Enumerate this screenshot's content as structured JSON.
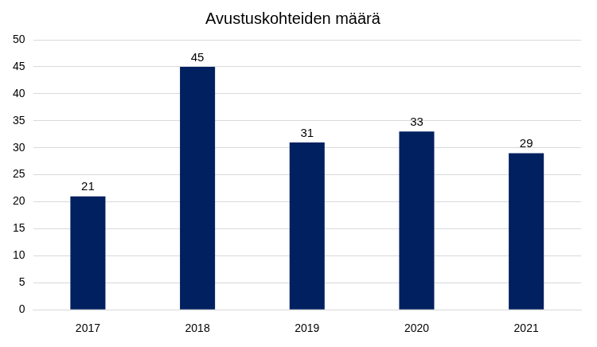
{
  "chart_data": {
    "type": "bar",
    "title": "Avustuskohteiden määrä",
    "categories": [
      "2017",
      "2018",
      "2019",
      "2020",
      "2021"
    ],
    "values": [
      21,
      45,
      31,
      33,
      29
    ],
    "color": "#002060",
    "ylim": [
      0,
      50
    ],
    "yticks": [
      0,
      5,
      10,
      15,
      20,
      25,
      30,
      35,
      40,
      45,
      50
    ],
    "grid": true,
    "data_labels": true
  }
}
